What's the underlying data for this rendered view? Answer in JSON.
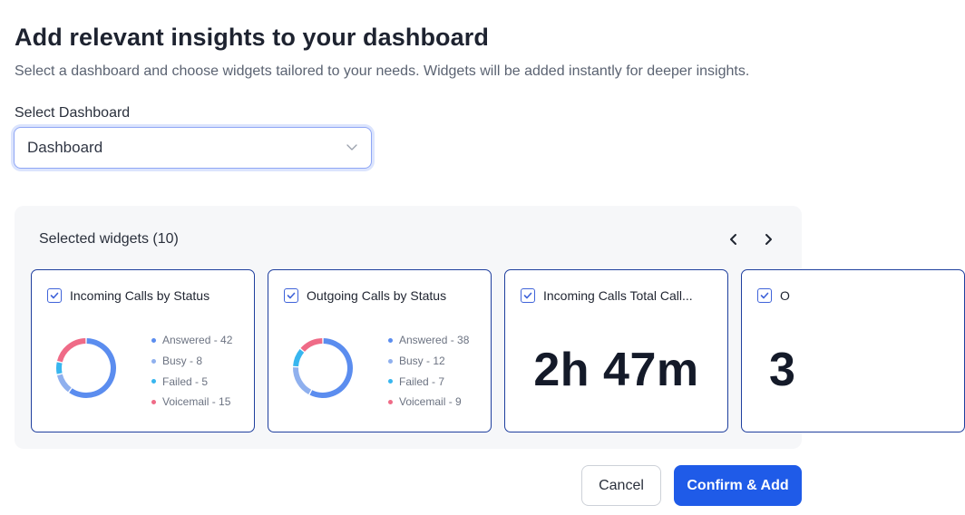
{
  "header": {
    "title": "Add relevant insights to your dashboard",
    "subtitle": "Select a dashboard and choose widgets tailored to your needs. Widgets will be added instantly for deeper insights."
  },
  "dashboard_select": {
    "label": "Select Dashboard",
    "value": "Dashboard"
  },
  "widgets_panel": {
    "title": "Selected widgets (10)",
    "cards": [
      {
        "title": "Incoming Calls by Status",
        "checked": true,
        "legend": [
          {
            "label": "Answered - 42",
            "color": "#5b8def",
            "value": 42
          },
          {
            "label": "Busy - 8",
            "color": "#8fb0ee",
            "value": 8
          },
          {
            "label": "Failed - 5",
            "color": "#38b6ef",
            "value": 5
          },
          {
            "label": "Voicemail - 15",
            "color": "#ef6b87",
            "value": 15
          }
        ]
      },
      {
        "title": "Outgoing Calls by Status",
        "checked": true,
        "legend": [
          {
            "label": "Answered - 38",
            "color": "#5b8def",
            "value": 38
          },
          {
            "label": "Busy - 12",
            "color": "#8fb0ee",
            "value": 12
          },
          {
            "label": "Failed - 7",
            "color": "#38b6ef",
            "value": 7
          },
          {
            "label": "Voicemail - 9",
            "color": "#ef6b87",
            "value": 9
          }
        ]
      },
      {
        "title": "Incoming Calls Total Call...",
        "checked": true,
        "value": "2h 47m"
      },
      {
        "title": "O",
        "checked": true,
        "value": "3"
      }
    ]
  },
  "actions": {
    "cancel": "Cancel",
    "confirm": "Confirm & Add"
  },
  "colors": {
    "primary": "#1f5be8",
    "card_border": "#1f3f9e",
    "panel_bg": "#f6f7f9"
  }
}
